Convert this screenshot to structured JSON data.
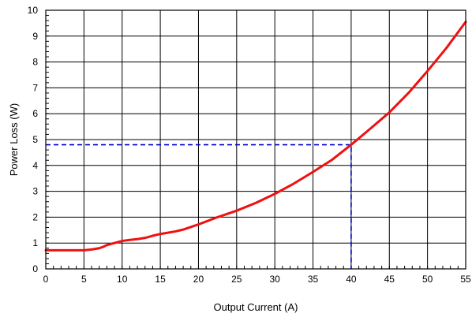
{
  "chart_data": {
    "type": "line",
    "title": "",
    "xlabel": "Output Current (A)",
    "ylabel": "Power Loss (W)",
    "xlim": [
      0,
      55
    ],
    "ylim": [
      0,
      10
    ],
    "x_ticks": [
      "0",
      "5",
      "10",
      "15",
      "20",
      "25",
      "30",
      "35",
      "40",
      "45",
      "50",
      "55"
    ],
    "y_ticks": [
      "0",
      "1",
      "2",
      "3",
      "4",
      "5",
      "6",
      "7",
      "8",
      "9",
      "10"
    ],
    "grid": true,
    "legend": "none",
    "series": [
      {
        "color": "#ee1111",
        "x": [
          0,
          2,
          4,
          5,
          6,
          7,
          7.5,
          8,
          9,
          10,
          11,
          12,
          13,
          14,
          15,
          17,
          18,
          20,
          22.5,
          25,
          27.5,
          30,
          32.5,
          35,
          37.5,
          40,
          42.5,
          45,
          47.5,
          50,
          52.5,
          55
        ],
        "y": [
          0.72,
          0.72,
          0.72,
          0.72,
          0.75,
          0.8,
          0.85,
          0.92,
          1.0,
          1.08,
          1.12,
          1.15,
          1.2,
          1.28,
          1.35,
          1.45,
          1.52,
          1.72,
          2.0,
          2.25,
          2.55,
          2.9,
          3.3,
          3.75,
          4.22,
          4.8,
          5.42,
          6.05,
          6.8,
          7.65,
          8.55,
          9.55
        ]
      }
    ],
    "reference_lines": [
      {
        "color": "#0000cc",
        "style": "dashed",
        "points": [
          [
            0,
            4.8
          ],
          [
            40,
            4.8
          ],
          [
            40,
            0
          ]
        ]
      }
    ]
  }
}
